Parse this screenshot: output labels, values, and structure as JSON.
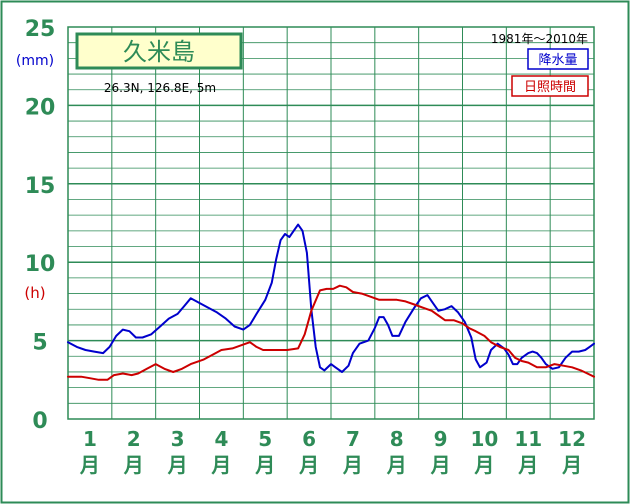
{
  "chart_data": {
    "type": "line",
    "station": "久米島",
    "location": "26.3N,  126.8E,  5m",
    "period": "1981年〜2010年",
    "y_unit_precip": "(mm)",
    "y_unit_sun": "(h)",
    "ylim": [
      0,
      25
    ],
    "yticks": [
      "0",
      "5",
      "10",
      "15",
      "20",
      "25"
    ],
    "xlim": [
      0.5,
      12.5
    ],
    "months": [
      {
        "num": "1",
        "unit": "月"
      },
      {
        "num": "2",
        "unit": "月"
      },
      {
        "num": "3",
        "unit": "月"
      },
      {
        "num": "4",
        "unit": "月"
      },
      {
        "num": "5",
        "unit": "月"
      },
      {
        "num": "6",
        "unit": "月"
      },
      {
        "num": "7",
        "unit": "月"
      },
      {
        "num": "8",
        "unit": "月"
      },
      {
        "num": "9",
        "unit": "月"
      },
      {
        "num": "10",
        "unit": "月"
      },
      {
        "num": "11",
        "unit": "月"
      },
      {
        "num": "12",
        "unit": "月"
      }
    ],
    "series": [
      {
        "name": "降水量",
        "color": "#0000cc",
        "points": [
          [
            0.5,
            4.9
          ],
          [
            0.7,
            4.6
          ],
          [
            0.9,
            4.4
          ],
          [
            1.1,
            4.3
          ],
          [
            1.3,
            4.2
          ],
          [
            1.45,
            4.6
          ],
          [
            1.6,
            5.3
          ],
          [
            1.75,
            5.7
          ],
          [
            1.9,
            5.6
          ],
          [
            2.05,
            5.2
          ],
          [
            2.2,
            5.2
          ],
          [
            2.4,
            5.4
          ],
          [
            2.6,
            5.9
          ],
          [
            2.8,
            6.4
          ],
          [
            3.0,
            6.7
          ],
          [
            3.15,
            7.2
          ],
          [
            3.3,
            7.7
          ],
          [
            3.5,
            7.4
          ],
          [
            3.7,
            7.1
          ],
          [
            3.9,
            6.8
          ],
          [
            4.1,
            6.4
          ],
          [
            4.3,
            5.9
          ],
          [
            4.5,
            5.7
          ],
          [
            4.65,
            6.0
          ],
          [
            4.8,
            6.7
          ],
          [
            5.0,
            7.6
          ],
          [
            5.15,
            8.7
          ],
          [
            5.25,
            10.2
          ],
          [
            5.35,
            11.4
          ],
          [
            5.45,
            11.8
          ],
          [
            5.55,
            11.6
          ],
          [
            5.65,
            12.0
          ],
          [
            5.75,
            12.4
          ],
          [
            5.85,
            12.0
          ],
          [
            5.95,
            10.6
          ],
          [
            6.05,
            7.0
          ],
          [
            6.15,
            4.6
          ],
          [
            6.25,
            3.3
          ],
          [
            6.35,
            3.1
          ],
          [
            6.5,
            3.5
          ],
          [
            6.6,
            3.3
          ],
          [
            6.75,
            3.0
          ],
          [
            6.9,
            3.4
          ],
          [
            7.0,
            4.2
          ],
          [
            7.15,
            4.8
          ],
          [
            7.35,
            5.0
          ],
          [
            7.5,
            5.8
          ],
          [
            7.6,
            6.5
          ],
          [
            7.7,
            6.5
          ],
          [
            7.8,
            6.0
          ],
          [
            7.9,
            5.3
          ],
          [
            8.05,
            5.3
          ],
          [
            8.2,
            6.2
          ],
          [
            8.4,
            7.1
          ],
          [
            8.55,
            7.7
          ],
          [
            8.7,
            7.9
          ],
          [
            8.8,
            7.5
          ],
          [
            8.95,
            6.9
          ],
          [
            9.1,
            7.0
          ],
          [
            9.25,
            7.2
          ],
          [
            9.4,
            6.8
          ],
          [
            9.55,
            6.2
          ],
          [
            9.7,
            5.2
          ],
          [
            9.8,
            3.8
          ],
          [
            9.9,
            3.3
          ],
          [
            10.05,
            3.6
          ],
          [
            10.15,
            4.4
          ],
          [
            10.3,
            4.8
          ],
          [
            10.45,
            4.5
          ],
          [
            10.55,
            4.1
          ],
          [
            10.65,
            3.5
          ],
          [
            10.75,
            3.5
          ],
          [
            10.85,
            3.9
          ],
          [
            11.0,
            4.2
          ],
          [
            11.1,
            4.3
          ],
          [
            11.2,
            4.2
          ],
          [
            11.3,
            3.9
          ],
          [
            11.4,
            3.5
          ],
          [
            11.55,
            3.2
          ],
          [
            11.7,
            3.3
          ],
          [
            11.85,
            3.9
          ],
          [
            12.0,
            4.3
          ],
          [
            12.15,
            4.3
          ],
          [
            12.3,
            4.4
          ],
          [
            12.4,
            4.6
          ],
          [
            12.5,
            4.8
          ]
        ]
      },
      {
        "name": "日照時間",
        "color": "#cc0000",
        "points": [
          [
            0.5,
            2.7
          ],
          [
            0.8,
            2.7
          ],
          [
            1.0,
            2.6
          ],
          [
            1.2,
            2.5
          ],
          [
            1.4,
            2.5
          ],
          [
            1.55,
            2.8
          ],
          [
            1.75,
            2.9
          ],
          [
            1.95,
            2.8
          ],
          [
            2.1,
            2.9
          ],
          [
            2.3,
            3.2
          ],
          [
            2.5,
            3.5
          ],
          [
            2.7,
            3.2
          ],
          [
            2.9,
            3.0
          ],
          [
            3.1,
            3.2
          ],
          [
            3.3,
            3.5
          ],
          [
            3.6,
            3.8
          ],
          [
            3.8,
            4.1
          ],
          [
            4.0,
            4.4
          ],
          [
            4.25,
            4.5
          ],
          [
            4.45,
            4.7
          ],
          [
            4.65,
            4.9
          ],
          [
            4.8,
            4.6
          ],
          [
            4.95,
            4.4
          ],
          [
            5.2,
            4.4
          ],
          [
            5.5,
            4.4
          ],
          [
            5.75,
            4.5
          ],
          [
            5.9,
            5.4
          ],
          [
            6.05,
            6.9
          ],
          [
            6.25,
            8.2
          ],
          [
            6.4,
            8.3
          ],
          [
            6.55,
            8.3
          ],
          [
            6.7,
            8.5
          ],
          [
            6.85,
            8.4
          ],
          [
            7.0,
            8.1
          ],
          [
            7.2,
            8.0
          ],
          [
            7.4,
            7.8
          ],
          [
            7.6,
            7.6
          ],
          [
            7.8,
            7.6
          ],
          [
            8.0,
            7.6
          ],
          [
            8.2,
            7.5
          ],
          [
            8.4,
            7.3
          ],
          [
            8.6,
            7.1
          ],
          [
            8.8,
            6.9
          ],
          [
            8.95,
            6.6
          ],
          [
            9.1,
            6.3
          ],
          [
            9.3,
            6.3
          ],
          [
            9.5,
            6.1
          ],
          [
            9.65,
            5.8
          ],
          [
            9.8,
            5.6
          ],
          [
            10.0,
            5.3
          ],
          [
            10.15,
            4.9
          ],
          [
            10.35,
            4.6
          ],
          [
            10.55,
            4.4
          ],
          [
            10.7,
            3.9
          ],
          [
            10.85,
            3.7
          ],
          [
            11.0,
            3.6
          ],
          [
            11.2,
            3.3
          ],
          [
            11.4,
            3.3
          ],
          [
            11.6,
            3.5
          ],
          [
            11.8,
            3.4
          ],
          [
            12.0,
            3.3
          ],
          [
            12.2,
            3.1
          ],
          [
            12.35,
            2.9
          ],
          [
            12.5,
            2.7
          ]
        ]
      }
    ],
    "colors": {
      "frame": "#2e8b57",
      "axis_text": "#2e8b57",
      "title_fill": "#ffffcc",
      "precip_unit": "#0000cc",
      "sun_unit": "#cc0000",
      "background": "#ffffff"
    },
    "grid": true,
    "legend_position": "top-right"
  }
}
